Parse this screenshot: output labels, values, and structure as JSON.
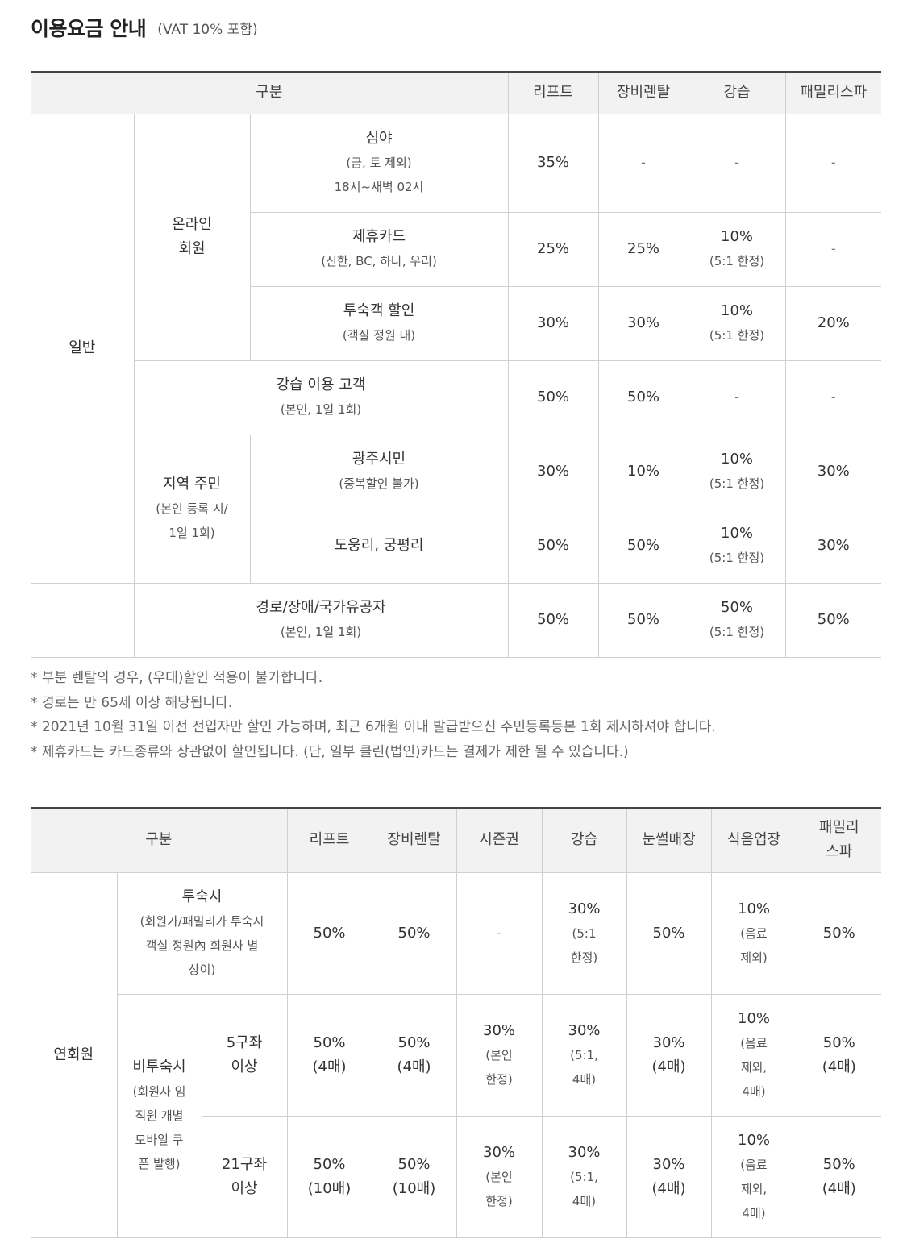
{
  "header": {
    "title": "이용요금 안내",
    "subtitle": "(VAT 10% 포함)"
  },
  "table1": {
    "headers": [
      "구분",
      "리프트",
      "장비렌탈",
      "강습",
      "패밀리스파"
    ],
    "group_general": "일반",
    "online": {
      "title": "온라인",
      "title2": "회원"
    },
    "local": {
      "title": "지역 주민",
      "sub1": "(본인 등록 시/",
      "sub2": "1일 1회)"
    },
    "rows": [
      {
        "name": "심야",
        "sub1": "(금, 토 제외)",
        "sub2": "18시~새벽 02시",
        "lift": "35%",
        "rental": "-",
        "lesson": "-",
        "lesson_sub": "",
        "spa": "-"
      },
      {
        "name": "제휴카드",
        "sub1": "(신한, BC, 하나, 우리)",
        "sub2": "",
        "lift": "25%",
        "rental": "25%",
        "lesson": "10%",
        "lesson_sub": "(5:1 한정)",
        "spa": "-"
      },
      {
        "name": "투숙객 할인",
        "sub1": "(객실 정원 내)",
        "sub2": "",
        "lift": "30%",
        "rental": "30%",
        "lesson": "10%",
        "lesson_sub": "(5:1 한정)",
        "spa": "20%"
      },
      {
        "name": "강습 이용 고객",
        "sub1": "(본인, 1일 1회)",
        "sub2": "",
        "lift": "50%",
        "rental": "50%",
        "lesson": "-",
        "lesson_sub": "",
        "spa": "-"
      },
      {
        "name": "광주시민",
        "sub1": "(중복할인 불가)",
        "sub2": "",
        "lift": "30%",
        "rental": "10%",
        "lesson": "10%",
        "lesson_sub": "(5:1 한정)",
        "spa": "30%"
      },
      {
        "name": "도웅리, 궁평리",
        "sub1": "",
        "sub2": "",
        "lift": "50%",
        "rental": "50%",
        "lesson": "10%",
        "lesson_sub": "(5:1 한정)",
        "spa": "30%"
      },
      {
        "name": "경로/장애/국가유공자",
        "sub1": "(본인, 1일 1회)",
        "sub2": "",
        "lift": "50%",
        "rental": "50%",
        "lesson": "50%",
        "lesson_sub": "(5:1 한정)",
        "spa": "50%"
      }
    ]
  },
  "notes": [
    "* 부분 렌탈의 경우, (우대)할인 적용이 불가합니다.",
    "* 경로는 만 65세 이상 해당됩니다.",
    "* 2021년 10월 31일 이전 전입자만 할인 가능하며, 최근 6개월 이내 발급받으신 주민등록등본 1회 제시하셔야 합니다.",
    "* 제휴카드는 카드종류와 상관없이 할인됩니다. (단, 일부 클린(법인)카드는 결제가 제한 될 수 있습니다.)"
  ],
  "table2": {
    "headers": [
      "구분",
      "리프트",
      "장비렌탈",
      "시즌권",
      "강습",
      "눈썰매장",
      "식음업장"
    ],
    "header_spa1": "패밀리",
    "header_spa2": "스파",
    "group": "연회원",
    "stay": {
      "name": "투숙시",
      "sub": [
        "(회원가/패밀리가 투숙시",
        "객실 정원內 회원사 별",
        "상이)"
      ],
      "lift": "50%",
      "rental": "50%",
      "season": "-",
      "lesson": [
        "30%",
        "(5:1",
        "한정)"
      ],
      "sled": "50%",
      "food": [
        "10%",
        "(음료",
        "제외)"
      ],
      "spa": "50%"
    },
    "nonstay": {
      "name": "비투숙시",
      "sub": [
        "(회원사 임",
        "직원 개별",
        "모바일 쿠",
        "폰 발행)"
      ]
    },
    "nonstay_rows": [
      {
        "name": [
          "5구좌",
          "이상"
        ],
        "lift": [
          "50%",
          "(4매)"
        ],
        "rental": [
          "50%",
          "(4매)"
        ],
        "season": [
          "30%",
          "(본인",
          "한정)"
        ],
        "lesson": [
          "30%",
          "(5:1,",
          "4매)"
        ],
        "sled": [
          "30%",
          "(4매)"
        ],
        "food": [
          "10%",
          "(음료",
          "제외,",
          "4매)"
        ],
        "spa": [
          "50%",
          "(4매)"
        ]
      },
      {
        "name": [
          "21구좌",
          "이상"
        ],
        "lift": [
          "50%",
          "(10매)"
        ],
        "rental": [
          "50%",
          "(10매)"
        ],
        "season": [
          "30%",
          "(본인",
          "한정)"
        ],
        "lesson": [
          "30%",
          "(5:1,",
          "4매)"
        ],
        "sled": [
          "30%",
          "(4매)"
        ],
        "food": [
          "10%",
          "(음료",
          "제외,",
          "4매)"
        ],
        "spa": [
          "50%",
          "(4매)"
        ]
      }
    ]
  }
}
